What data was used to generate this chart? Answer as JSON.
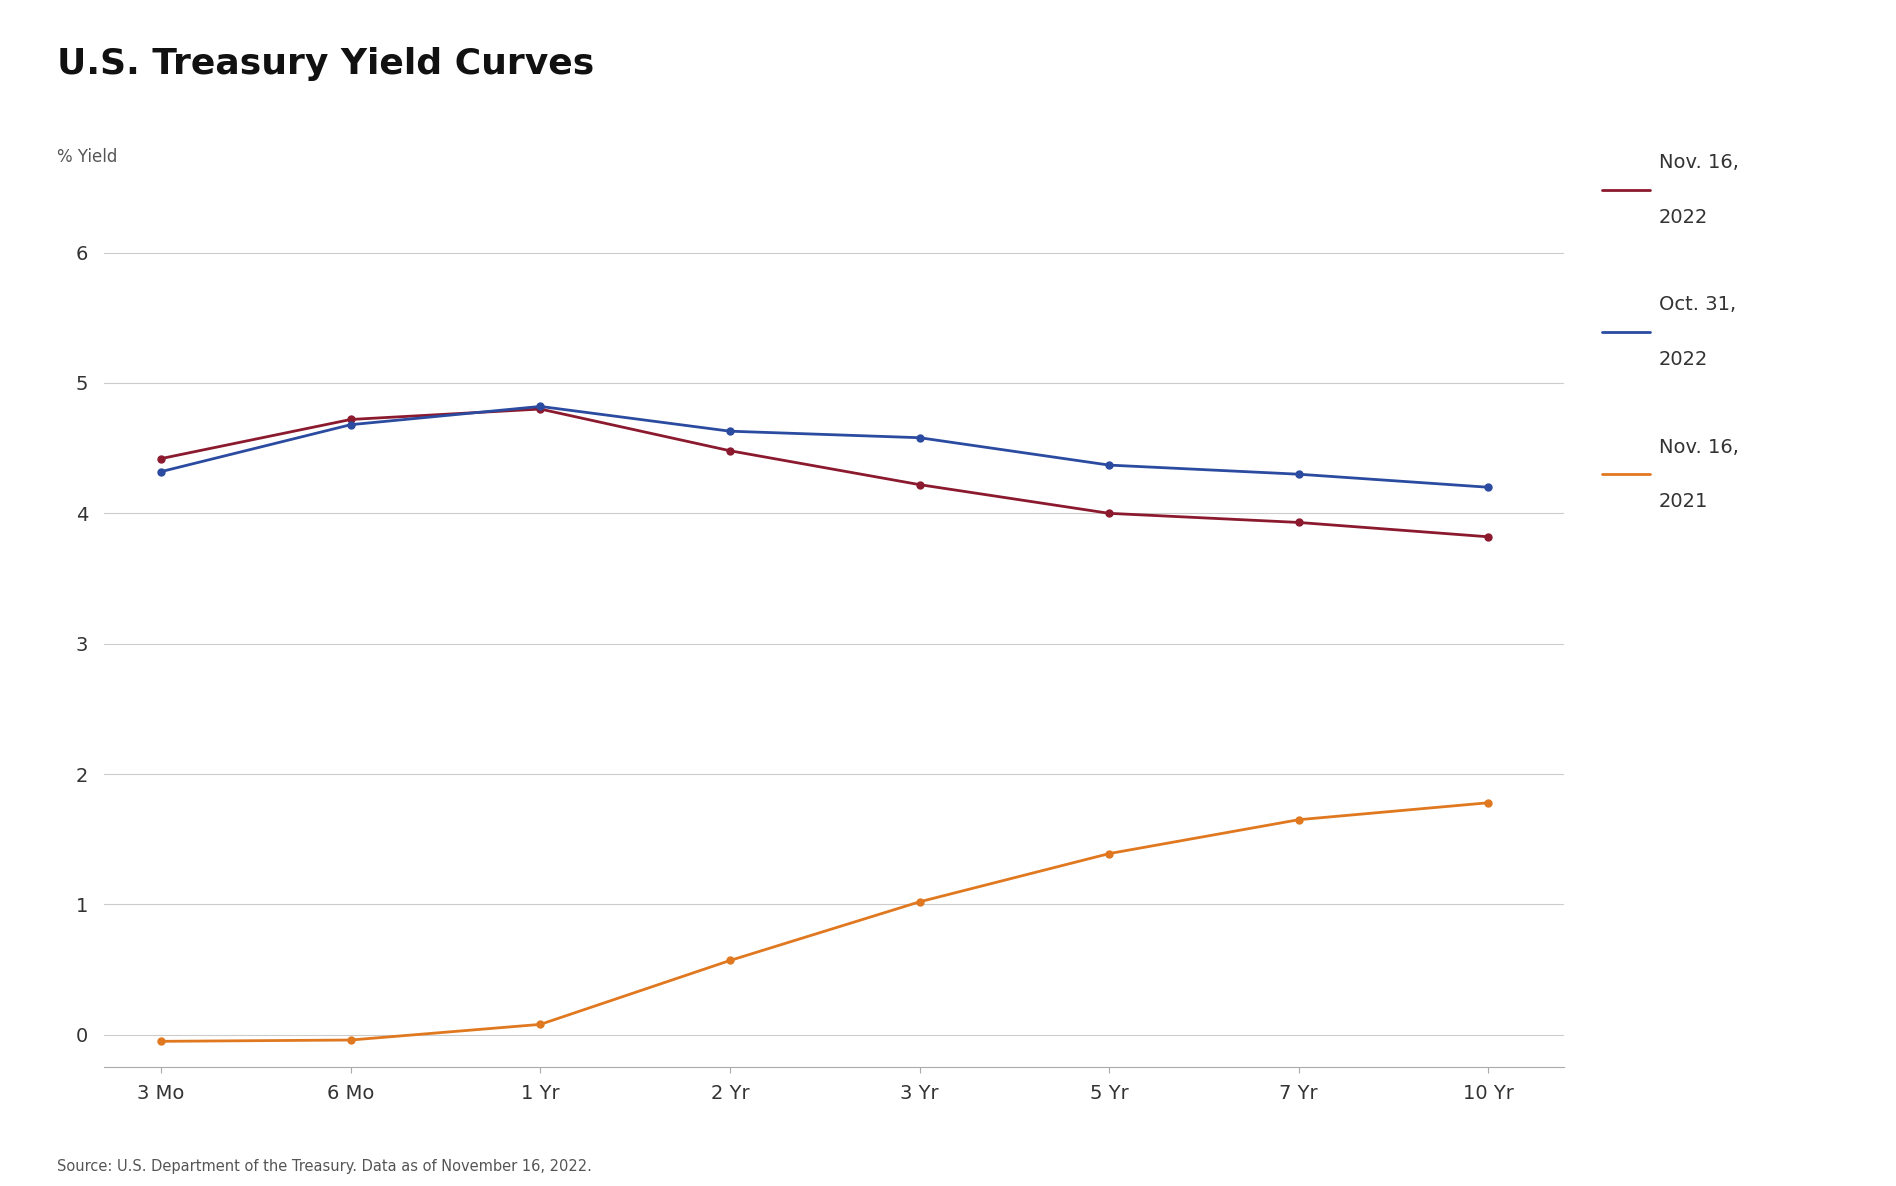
{
  "title": "U.S. Treasury Yield Curves",
  "ylabel": "% Yield",
  "source": "Source: U.S. Department of the Treasury. Data as of November 16, 2022.",
  "x_labels": [
    "3 Mo",
    "6 Mo",
    "1 Yr",
    "2 Yr",
    "3 Yr",
    "5 Yr",
    "7 Yr",
    "10 Yr"
  ],
  "x_positions": [
    0,
    1,
    2,
    3,
    4,
    5,
    6,
    7
  ],
  "series": [
    {
      "label": "Nov. 16,\n2022",
      "color": "#8B1A2F",
      "values": [
        4.42,
        4.72,
        4.8,
        4.48,
        4.22,
        4.0,
        3.93,
        3.82
      ],
      "marker": "o"
    },
    {
      "label": "Oct. 31,\n2022",
      "color": "#2B4BA0",
      "values": [
        4.32,
        4.68,
        4.82,
        4.63,
        4.58,
        4.37,
        4.3,
        4.2
      ],
      "marker": "o"
    },
    {
      "label": "Nov. 16,\n2021",
      "color": "#E07820",
      "values": [
        -0.05,
        -0.04,
        0.08,
        0.57,
        1.02,
        1.39,
        1.65,
        1.78
      ],
      "marker": "o"
    }
  ],
  "ylim": [
    -0.25,
    6.3
  ],
  "yticks": [
    0,
    1,
    2,
    3,
    4,
    5,
    6
  ],
  "background_color": "#ffffff",
  "grid_color": "#cccccc",
  "title_fontsize": 26,
  "label_fontsize": 12,
  "tick_fontsize": 14,
  "legend_fontsize": 14
}
